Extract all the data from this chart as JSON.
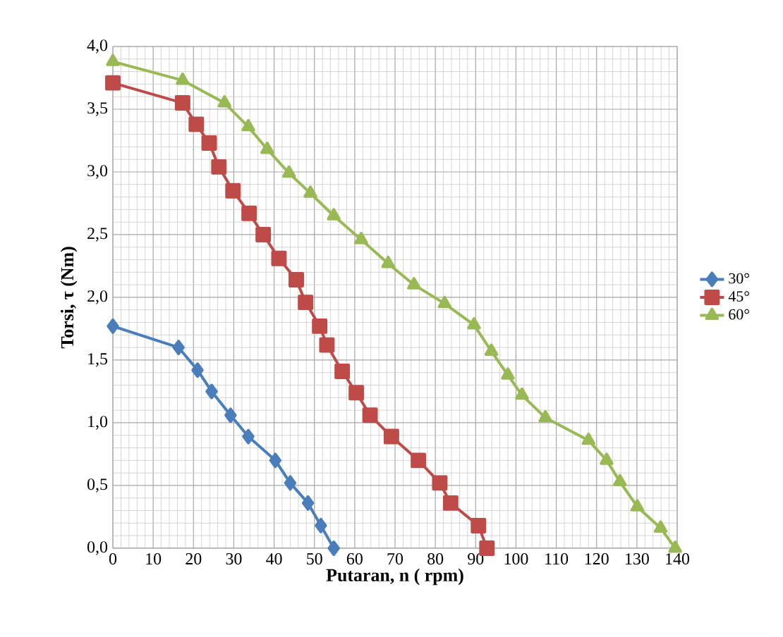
{
  "chart_data": {
    "type": "line",
    "xlabel": "Putaran, n ( rpm)",
    "ylabel": "Torsi, τ (Nm)",
    "xlim": [
      0,
      140
    ],
    "xticks": [
      0,
      10,
      20,
      30,
      40,
      50,
      60,
      70,
      80,
      90,
      100,
      110,
      120,
      130,
      140
    ],
    "ylim": [
      0,
      4
    ],
    "yticks": [
      {
        "value": 0,
        "label": "0,0"
      },
      {
        "value": 0.5,
        "label": "0,5"
      },
      {
        "value": 1,
        "label": "1,0"
      },
      {
        "value": 1.5,
        "label": "1,5"
      },
      {
        "value": 2,
        "label": "2,0"
      },
      {
        "value": 2.5,
        "label": "2,5"
      },
      {
        "value": 3,
        "label": "3,0"
      },
      {
        "value": 3.5,
        "label": "3,5"
      },
      {
        "value": 4,
        "label": "4,0"
      }
    ],
    "grid": true,
    "legend": "right",
    "series": [
      {
        "name": "30°",
        "color": "#4a7ebb",
        "marker": "diamond",
        "x": [
          0,
          16.3,
          21,
          24.5,
          29.2,
          33.6,
          40.3,
          44,
          48.4,
          51.6,
          54.8
        ],
        "values": [
          1.77,
          1.6,
          1.42,
          1.25,
          1.06,
          0.89,
          0.7,
          0.52,
          0.36,
          0.18,
          0
        ]
      },
      {
        "name": "45°",
        "color": "#be4b48",
        "marker": "square",
        "x": [
          0,
          17.3,
          20.7,
          23.9,
          26.3,
          29.8,
          33.8,
          37.3,
          41.2,
          45.5,
          47.8,
          51.3,
          53.1,
          56.9,
          60.4,
          63.8,
          69.1,
          75.8,
          81.1,
          83.8,
          90.7,
          92.8
        ],
        "values": [
          3.71,
          3.55,
          3.38,
          3.23,
          3.04,
          2.85,
          2.67,
          2.5,
          2.31,
          2.14,
          1.96,
          1.77,
          1.62,
          1.41,
          1.24,
          1.06,
          0.89,
          0.7,
          0.52,
          0.36,
          0.18,
          0
        ]
      },
      {
        "name": "60°",
        "color": "#98b954",
        "marker": "triangle",
        "x": [
          0,
          17.3,
          27.7,
          33.6,
          38.3,
          43.7,
          49,
          54.8,
          61.6,
          68.3,
          74.7,
          82.3,
          89.6,
          93.9,
          98,
          101.5,
          107.3,
          118,
          122.5,
          125.8,
          130.1,
          135.9,
          139.5
        ],
        "values": [
          3.88,
          3.73,
          3.55,
          3.36,
          3.18,
          2.99,
          2.83,
          2.65,
          2.46,
          2.27,
          2.1,
          1.95,
          1.78,
          1.57,
          1.38,
          1.22,
          1.04,
          0.86,
          0.7,
          0.53,
          0.33,
          0.16,
          0
        ]
      }
    ]
  }
}
